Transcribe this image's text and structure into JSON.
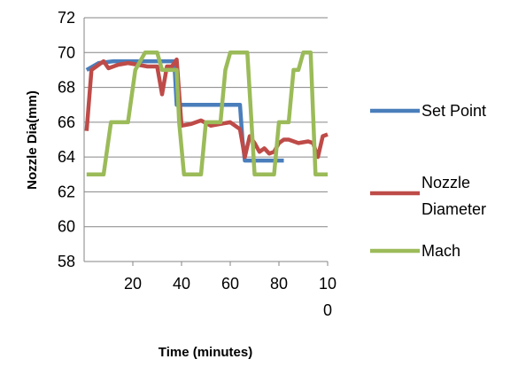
{
  "chart_data": {
    "type": "line",
    "xlabel": "Time (minutes)",
    "ylabel": "Nozzle Dia(mm)",
    "ylim": [
      58,
      72
    ],
    "xlim": [
      0,
      100
    ],
    "yticks": [
      "58",
      "60",
      "62",
      "64",
      "66",
      "68",
      "70",
      "72"
    ],
    "xticks": [
      {
        "value": 20,
        "lines": [
          "20"
        ]
      },
      {
        "value": 40,
        "lines": [
          "40"
        ]
      },
      {
        "value": 60,
        "lines": [
          "60"
        ]
      },
      {
        "value": 80,
        "lines": [
          "80"
        ]
      },
      {
        "value": 100,
        "lines": [
          "10",
          "0"
        ]
      }
    ],
    "grid": "horizontal",
    "legend_position": "right",
    "series": [
      {
        "name": "Set Point",
        "legend_lines": [
          "Set Point"
        ],
        "color": "#4a7ebb",
        "x": [
          1,
          6,
          12,
          18,
          24,
          30,
          36,
          37,
          38,
          44,
          50,
          56,
          62,
          64,
          65,
          66,
          72,
          78,
          82
        ],
        "y": [
          69,
          69.4,
          69.5,
          69.5,
          69.5,
          69.5,
          69.5,
          69.5,
          67,
          67,
          67,
          67,
          67,
          67,
          65,
          63.8,
          63.8,
          63.8,
          63.8
        ]
      },
      {
        "name": "Nozzle Diameter",
        "legend_lines": [
          "Nozzle",
          "Diameter"
        ],
        "color": "#be4b48",
        "x": [
          1,
          3,
          6,
          8,
          10,
          14,
          18,
          22,
          26,
          30,
          32,
          34,
          36,
          38,
          40,
          44,
          48,
          52,
          56,
          60,
          64,
          66,
          68,
          70,
          72,
          74,
          76,
          78,
          80,
          82,
          84,
          88,
          92,
          94,
          96,
          98,
          100
        ],
        "y": [
          65.5,
          69,
          69.3,
          69.5,
          69.1,
          69.3,
          69.4,
          69.3,
          69.2,
          69.2,
          67.6,
          69.2,
          69.2,
          69.6,
          65.8,
          65.9,
          66.1,
          65.8,
          65.9,
          66,
          65.6,
          64,
          65.2,
          64.8,
          64.3,
          64.5,
          64.2,
          64.3,
          64.8,
          65,
          65,
          64.8,
          64.9,
          64.8,
          64,
          65.2,
          65.3
        ]
      },
      {
        "name": "Mach",
        "legend_lines": [
          "Mach"
        ],
        "color": "#9bbb59",
        "x": [
          1,
          8,
          11,
          18,
          21,
          25,
          30,
          32,
          34,
          38,
          39,
          41,
          43,
          48,
          50,
          56,
          58,
          60,
          62,
          64,
          67,
          70,
          72,
          78,
          80,
          84,
          86,
          88,
          90,
          93,
          95,
          97,
          100
        ],
        "y": [
          63,
          63,
          66,
          66,
          69,
          70,
          70,
          69,
          69,
          69,
          66,
          63,
          63,
          63,
          66,
          66,
          69,
          70,
          70,
          70,
          70,
          63,
          63,
          63,
          66,
          66,
          69,
          69,
          70,
          70,
          63,
          63,
          63
        ]
      }
    ]
  }
}
